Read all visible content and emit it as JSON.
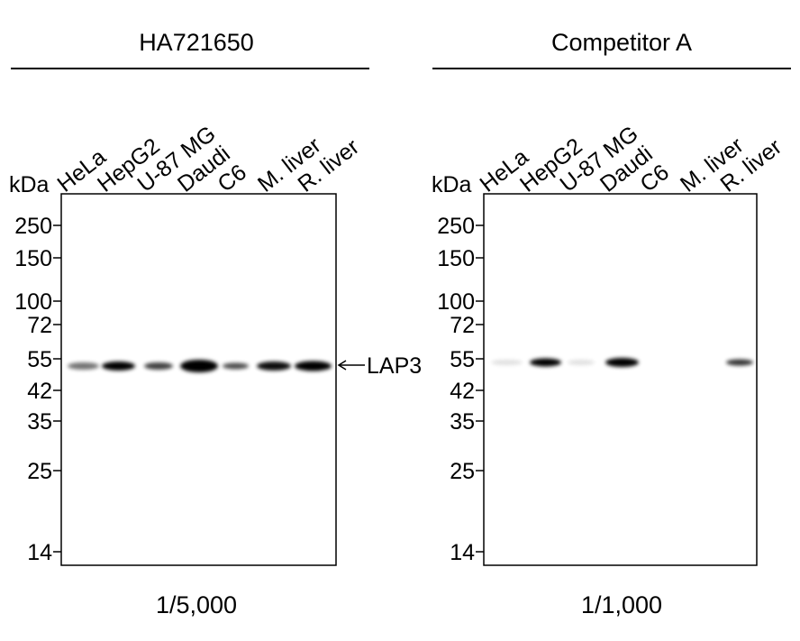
{
  "panels": [
    {
      "title": "HA721650",
      "unit": "kDa",
      "lanes": [
        "HeLa",
        "HepG2",
        "U-87 MG",
        "Daudi",
        "C6",
        "M. liver",
        "R. liver"
      ],
      "markers": [
        "250",
        "150",
        "100",
        "72",
        "55",
        "42",
        "35",
        "25",
        "14"
      ],
      "dilution": "1/5,000"
    },
    {
      "title": "Competitor A",
      "unit": "kDa",
      "lanes": [
        "HeLa",
        "HepG2",
        "U-87 MG",
        "Daudi",
        "C6",
        "M. liver",
        "R. liver"
      ],
      "markers": [
        "250",
        "150",
        "100",
        "72",
        "55",
        "42",
        "35",
        "25",
        "14"
      ],
      "dilution": "1/1,000"
    }
  ],
  "band_label": "LAP3"
}
